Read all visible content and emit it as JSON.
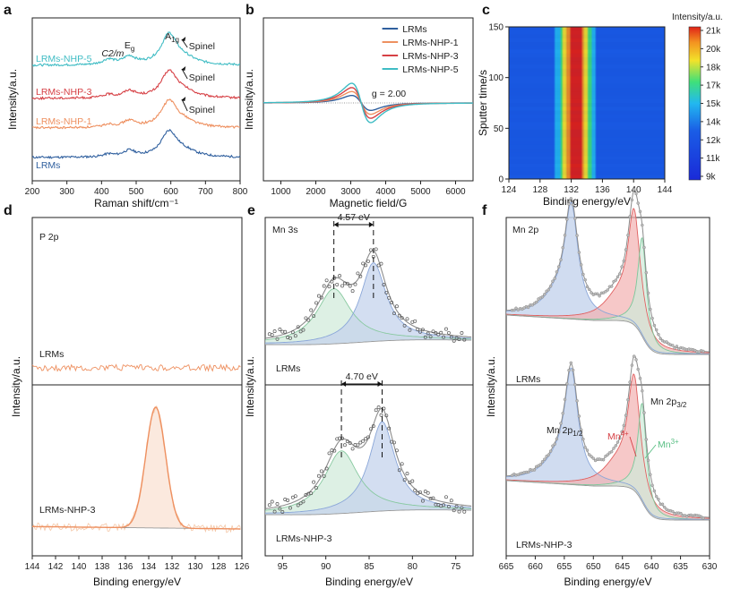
{
  "colors": {
    "LRMs": "#2f5f9e",
    "LRMs-NHP-1": "#ee9060",
    "LRMs-NHP-3": "#d64045",
    "LRMs-NHP-5": "#3fbcc4",
    "fill_blue": "#c4d3ec",
    "fill_green": "#cfe9d8",
    "fill_red": "#f2b0b0",
    "fill_orange": "#f7cfb6",
    "data_grey": "#7a7a7a"
  },
  "chart_data": [
    {
      "id": "a",
      "type": "line",
      "panel_label": "a",
      "xlabel": "Raman shift/cm⁻¹",
      "ylabel": "Intensity/a.u.",
      "xlim": [
        200,
        800
      ],
      "xticks": [
        200,
        300,
        400,
        500,
        600,
        700,
        800
      ],
      "series": [
        {
          "name": "LRMs",
          "offset": 0,
          "peaks": [
            [
              420,
              0.06,
              18
            ],
            [
              480,
              0.14,
              22
            ],
            [
              595,
              0.58,
              28
            ],
            [
              640,
              0.12,
              40
            ]
          ]
        },
        {
          "name": "LRMs-NHP-1",
          "offset": 1,
          "peaks": [
            [
              420,
              0.07,
              18
            ],
            [
              480,
              0.15,
              22
            ],
            [
              595,
              0.6,
              28
            ],
            [
              640,
              0.12,
              40
            ]
          ]
        },
        {
          "name": "LRMs-NHP-3",
          "offset": 2,
          "peaks": [
            [
              420,
              0.07,
              18
            ],
            [
              480,
              0.16,
              22
            ],
            [
              595,
              0.6,
              28
            ],
            [
              640,
              0.12,
              40
            ]
          ]
        },
        {
          "name": "LRMs-NHP-5",
          "offset": 3,
          "peaks": [
            [
              420,
              0.12,
              20
            ],
            [
              480,
              0.18,
              22
            ],
            [
              595,
              0.7,
              28
            ],
            [
              640,
              0.12,
              40
            ]
          ]
        }
      ],
      "annotations": [
        {
          "text": "C2/m",
          "x": 430
        },
        {
          "text": "E",
          "sub": "g",
          "x": 480
        },
        {
          "text": "A",
          "sub": "1g",
          "x": 595
        },
        {
          "text": "Spinel",
          "x": 650
        },
        {
          "text": "Spinel",
          "x": 650
        },
        {
          "text": "Spinel",
          "x": 650
        }
      ]
    },
    {
      "id": "b",
      "type": "line",
      "panel_label": "b",
      "xlabel": "Magnetic field/G",
      "ylabel": "Intensity/a.u.",
      "xlim": [
        500,
        6500
      ],
      "xticks": [
        1000,
        2000,
        3000,
        4000,
        5000,
        6000
      ],
      "center": 3300,
      "width": 470,
      "series": [
        {
          "name": "LRMs",
          "amplitude": 0.38
        },
        {
          "name": "LRMs-NHP-1",
          "amplitude": 0.58
        },
        {
          "name": "LRMs-NHP-3",
          "amplitude": 0.78
        },
        {
          "name": "LRMs-NHP-5",
          "amplitude": 1.0
        }
      ],
      "g_label": "g = 2.00"
    },
    {
      "id": "c",
      "type": "heatmap",
      "panel_label": "c",
      "xlabel": "Binding energy/eV",
      "ylabel": "Sputter time/s",
      "xlim": [
        124,
        144
      ],
      "ylim": [
        0,
        150
      ],
      "xticks": [
        124,
        128,
        132,
        136,
        140,
        144
      ],
      "yticks": [
        0,
        50,
        100,
        150
      ],
      "peak_center": 132.5,
      "peak_width": 1.6,
      "colorbar": {
        "title": "Intensity/a.u.",
        "ticks": [
          "21k",
          "20k",
          "18k",
          "17k",
          "15k",
          "14k",
          "12k",
          "11k",
          "9k"
        ],
        "min": 9000,
        "max": 21000
      }
    },
    {
      "id": "d",
      "type": "line",
      "panel_label": "d",
      "title": "P 2p",
      "xlabel": "Binding energy/eV",
      "ylabel": "Intensity/a.u.",
      "xlim": [
        144,
        126
      ],
      "xticks": [
        144,
        142,
        140,
        138,
        136,
        134,
        132,
        130,
        128,
        126
      ],
      "series": [
        {
          "name": "LRMs"
        },
        {
          "name": "LRMs-NHP-3",
          "peak_center": 133.4,
          "peak_fwhm": 2.0
        }
      ]
    },
    {
      "id": "e",
      "type": "scatter",
      "panel_label": "e",
      "title": "Mn 3s",
      "xlabel": "Binding energy/eV",
      "ylabel": "Intensity/a.u.",
      "xlim": [
        97,
        73
      ],
      "xticks": [
        95,
        90,
        85,
        80,
        75
      ],
      "series": [
        {
          "name": "LRMs",
          "peak_low": 84.5,
          "peak_high": 89.07,
          "splitting": "4.57 eV"
        },
        {
          "name": "LRMs-NHP-3",
          "peak_low": 83.5,
          "peak_high": 88.2,
          "splitting": "4.70 eV"
        }
      ]
    },
    {
      "id": "f",
      "type": "scatter",
      "panel_label": "f",
      "title": "Mn 2p",
      "xlabel": "Binding energy/eV",
      "ylabel": "Intensity/a.u.",
      "xlim": [
        665,
        630
      ],
      "xticks": [
        665,
        660,
        655,
        650,
        645,
        640,
        635,
        630
      ],
      "series": [
        {
          "name": "LRMs",
          "mn4_center": 643.0,
          "mn3_center": 641.6,
          "p12_center": 653.8
        },
        {
          "name": "LRMs-NHP-3",
          "mn4_center": 643.0,
          "mn3_center": 641.6,
          "p12_center": 653.8
        }
      ],
      "labels": {
        "mn2p12": "Mn 2p",
        "mn2p12_sub": "1/2",
        "mn2p32": "Mn 2p",
        "mn2p32_sub": "3/2",
        "mn4": "Mn",
        "mn4_sup": "4+",
        "mn3": "Mn",
        "mn3_sup": "3+"
      }
    }
  ]
}
